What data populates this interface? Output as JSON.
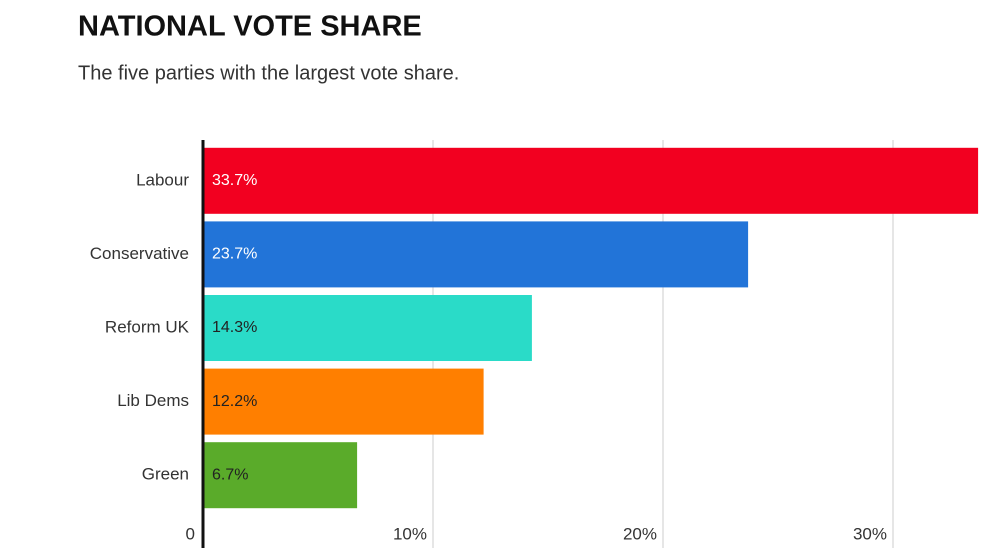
{
  "chart_data": {
    "type": "bar",
    "orientation": "horizontal",
    "title": "NATIONAL VOTE SHARE",
    "subtitle": "The five parties with the largest vote share.",
    "categories": [
      "Labour",
      "Conservative",
      "Reform UK",
      "Lib Dems",
      "Green"
    ],
    "values": [
      33.7,
      23.7,
      14.3,
      12.2,
      6.7
    ],
    "value_labels": [
      "33.7%",
      "23.7%",
      "14.3%",
      "12.2%",
      "6.7%"
    ],
    "colors": [
      "#f20020",
      "#2274d8",
      "#2adbc8",
      "#ff7f00",
      "#5aab2a"
    ],
    "xlim": [
      0,
      34
    ],
    "xticks": [
      0,
      {
        "value": 10,
        "label": "10%"
      },
      {
        "value": 20,
        "label": "20%"
      },
      {
        "value": 30,
        "label": "30%"
      }
    ],
    "grid": true
  }
}
